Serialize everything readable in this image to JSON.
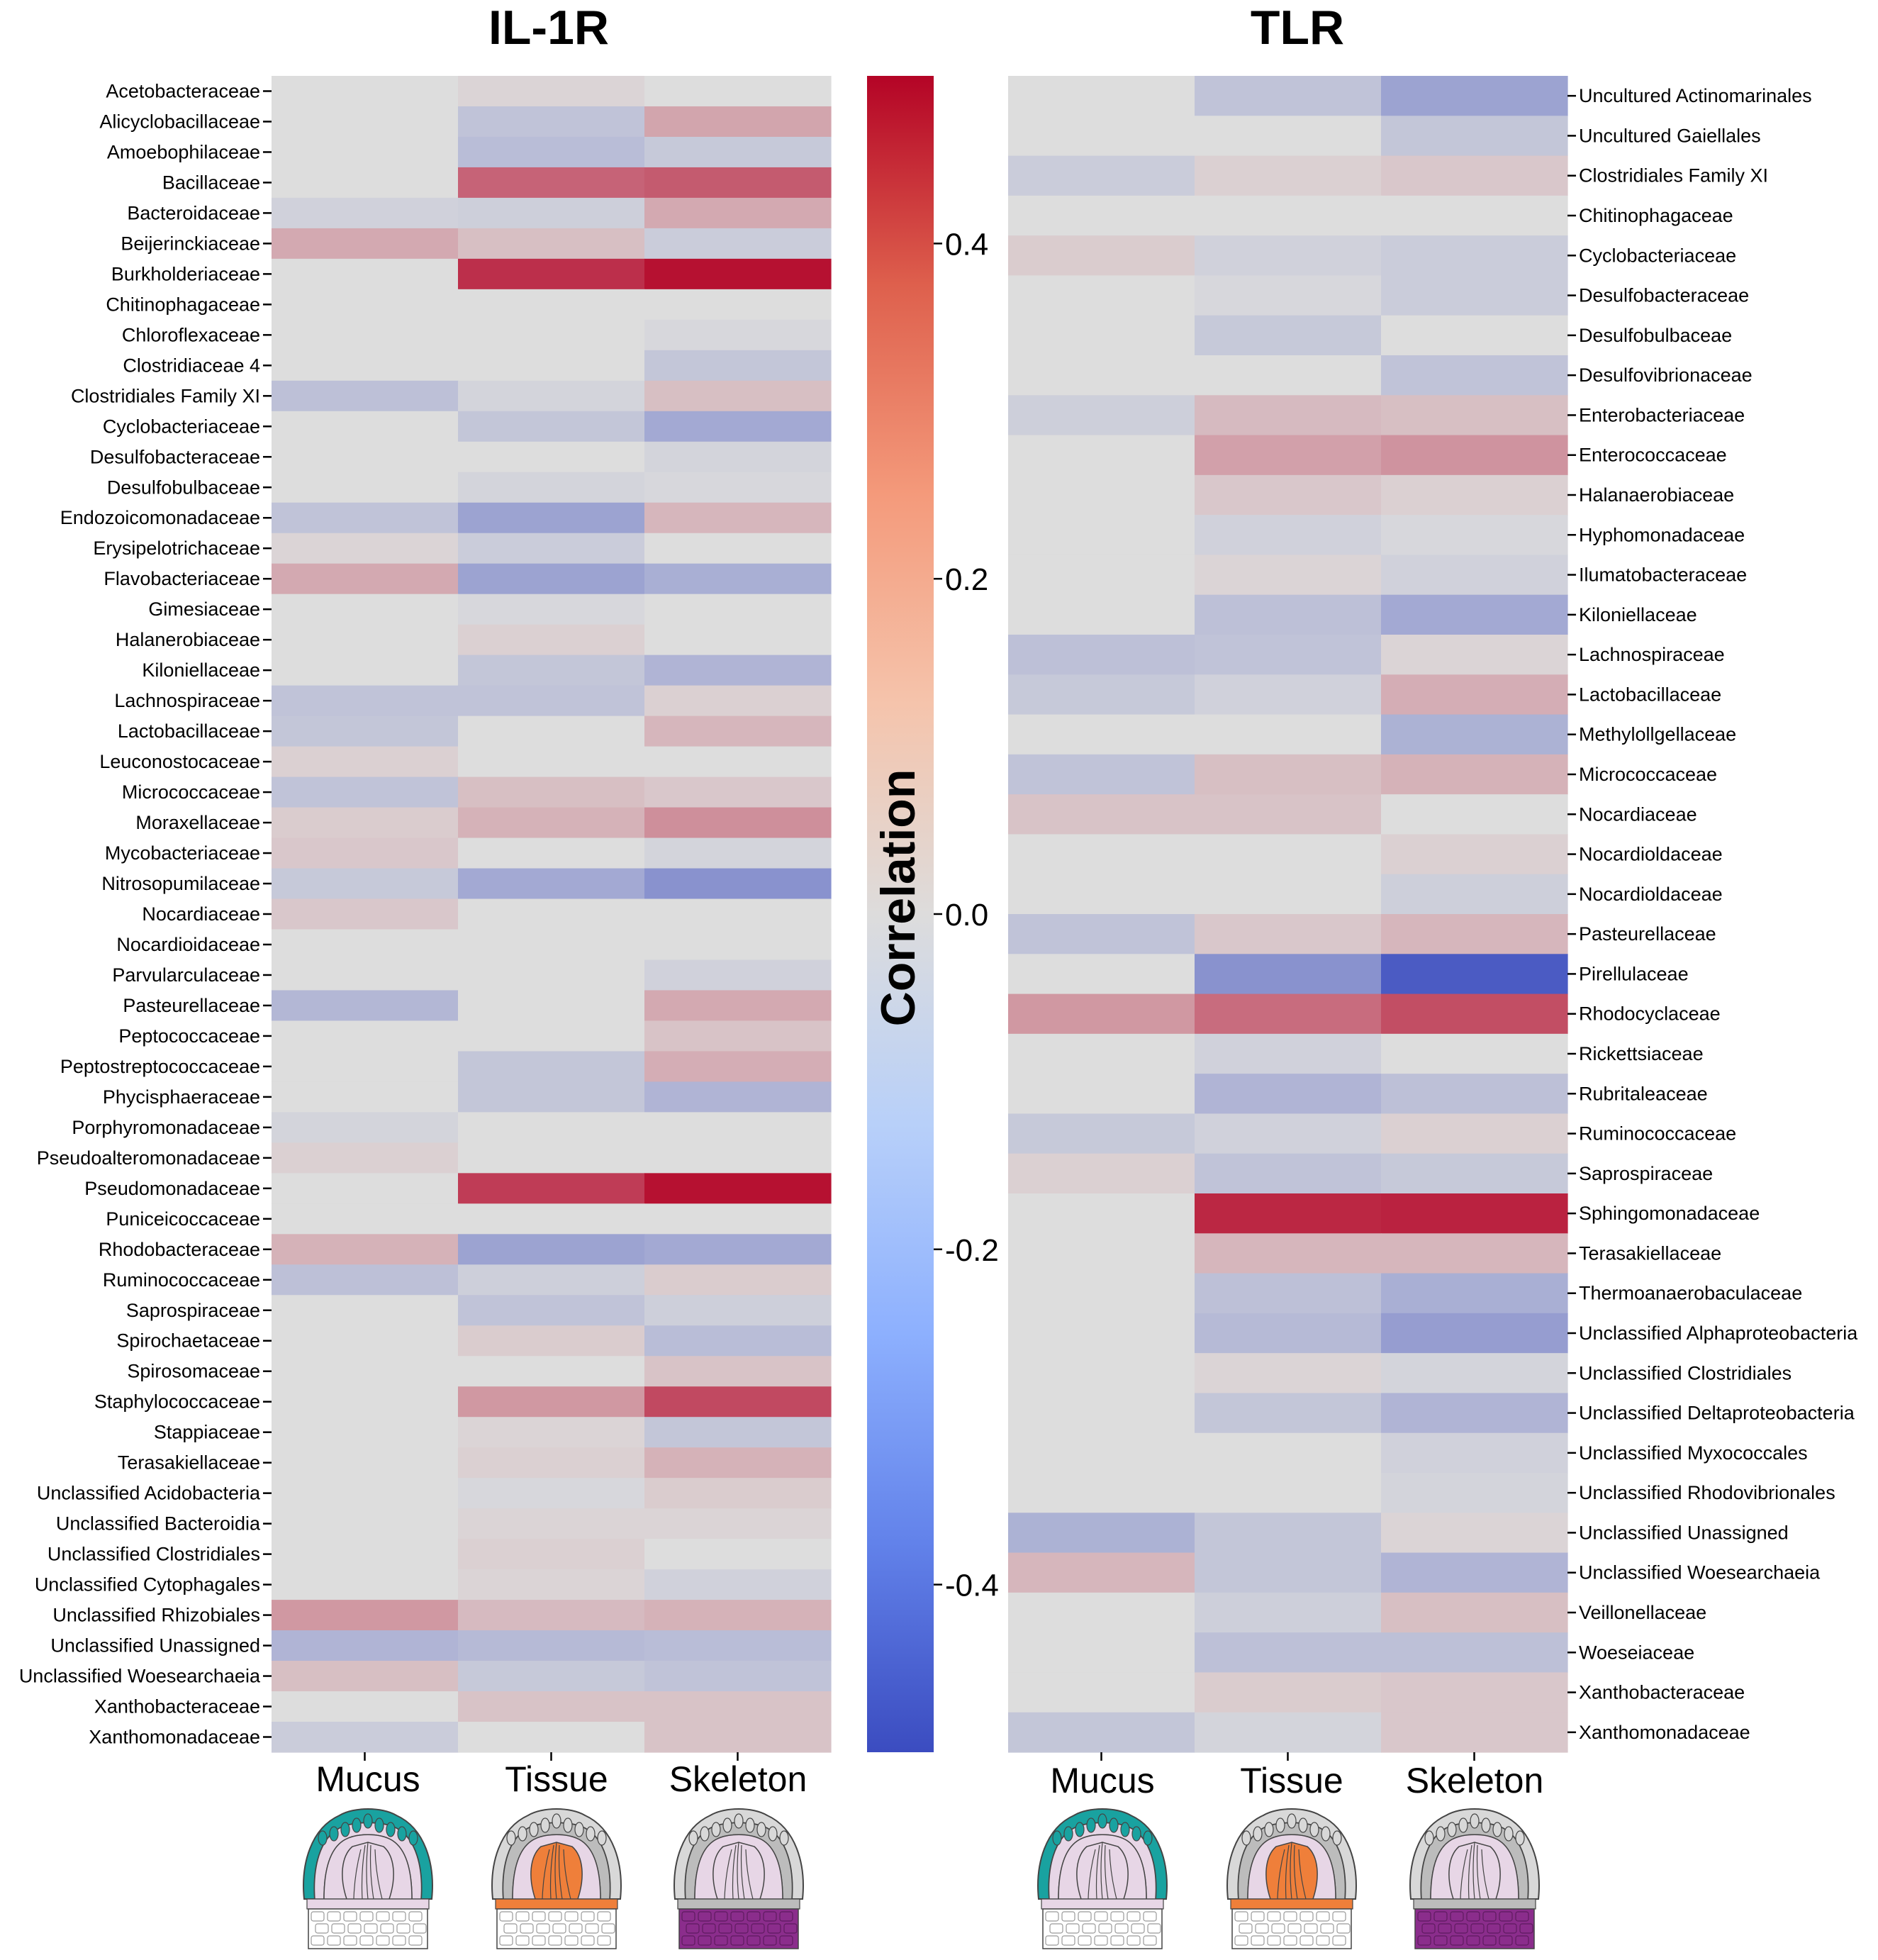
{
  "chart_data": [
    {
      "type": "heatmap",
      "title": "IL-1R",
      "columns": [
        "Mucus",
        "Tissue",
        "Skeleton"
      ],
      "rows": [
        "Acetobacteraceae",
        "Alicyclobacillaceae",
        "Amoebophilaceae",
        "Bacillaceae",
        "Bacteroidaceae",
        "Beijerinckiaceae",
        "Burkholderiaceae",
        "Chitinophagaceae",
        "Chloroflexaceae",
        "Clostridiaceae 4",
        "Clostridiales Family XI",
        "Cyclobacteriaceae",
        "Desulfobacteraceae",
        "Desulfobulbaceae",
        "Endozoicomonadaceae",
        "Erysipelotrichaceae",
        "Flavobacteriaceae",
        "Gimesiaceae",
        "Halanerobiaceae",
        "Kiloniellaceae",
        "Lachnospiraceae",
        "Lactobacillaceae",
        "Leuconostocaceae",
        "Micrococcaceae",
        "Moraxellaceae",
        "Mycobacteriaceae",
        "Nitrosopumilaceae",
        "Nocardiaceae",
        "Nocardioidaceae",
        "Parvularculaceae",
        "Pasteurellaceae",
        "Peptococcaceae",
        "Peptostreptococcaceae",
        "Phycisphaeraceae",
        "Porphyromonadaceae",
        "Pseudoalteromonadaceae",
        "Pseudomonadaceae",
        "Puniceicoccaceae",
        "Rhodobacteraceae",
        "Ruminococcaceae",
        "Saprospiraceae",
        "Spirochaetaceae",
        "Spirosomaceae",
        "Staphylococcaceae",
        "Stappiaceae",
        "Terasakiellaceae",
        "Unclassified Acidobacteria",
        "Unclassified Bacteroidia",
        "Unclassified Clostridiales",
        "Unclassified Cytophagales",
        "Unclassified Rhizobiales",
        "Unclassified Unassigned",
        "Unclassified Woesearchaeia",
        "Xanthobacteraceae",
        "Xanthomonadaceae"
      ],
      "values": [
        [
          0,
          0.02,
          0
        ],
        [
          0,
          -0.09,
          0.13
        ],
        [
          0,
          -0.11,
          -0.07
        ],
        [
          0,
          0.28,
          0.3
        ],
        [
          -0.04,
          -0.05,
          0.12
        ],
        [
          0.12,
          0.07,
          -0.06
        ],
        [
          0,
          0.4,
          0.47
        ],
        [
          0,
          0,
          0
        ],
        [
          0,
          0,
          -0.02
        ],
        [
          0,
          0,
          -0.08
        ],
        [
          -0.1,
          -0.03,
          0.07
        ],
        [
          0,
          -0.08,
          -0.18
        ],
        [
          0,
          0,
          -0.03
        ],
        [
          0,
          -0.03,
          -0.02
        ],
        [
          -0.09,
          -0.2,
          0.09
        ],
        [
          0.02,
          -0.06,
          0
        ],
        [
          0.12,
          -0.2,
          -0.16
        ],
        [
          0,
          -0.02,
          0
        ],
        [
          0,
          0.03,
          0
        ],
        [
          0,
          -0.08,
          -0.14
        ],
        [
          -0.09,
          -0.09,
          0.03
        ],
        [
          -0.08,
          0,
          0.09
        ],
        [
          0.03,
          0,
          0
        ],
        [
          -0.09,
          0.07,
          0.05
        ],
        [
          0.04,
          0.1,
          0.18
        ],
        [
          0.05,
          0,
          -0.03
        ],
        [
          -0.07,
          -0.18,
          -0.26
        ],
        [
          0.05,
          0,
          0
        ],
        [
          0,
          0,
          0
        ],
        [
          0,
          0,
          -0.04
        ],
        [
          -0.13,
          0,
          0.12
        ],
        [
          0,
          0,
          0.06
        ],
        [
          0,
          -0.08,
          0.11
        ],
        [
          0,
          -0.08,
          -0.14
        ],
        [
          -0.03,
          0,
          0
        ],
        [
          0.03,
          0,
          0
        ],
        [
          0,
          0.37,
          0.47
        ],
        [
          0,
          0,
          0
        ],
        [
          0.1,
          -0.2,
          -0.18
        ],
        [
          -0.1,
          -0.05,
          0.04
        ],
        [
          0,
          -0.09,
          -0.05
        ],
        [
          0,
          0.04,
          -0.11
        ],
        [
          0,
          0,
          0.06
        ],
        [
          0,
          0.16,
          0.34
        ],
        [
          0,
          0.02,
          -0.08
        ],
        [
          0,
          0.03,
          0.1
        ],
        [
          0,
          -0.02,
          0.04
        ],
        [
          0,
          0.02,
          0.02
        ],
        [
          0,
          0.03,
          0
        ],
        [
          0,
          0.02,
          -0.04
        ],
        [
          0.16,
          0.08,
          0.1
        ],
        [
          -0.14,
          -0.12,
          -0.11
        ],
        [
          0.07,
          -0.07,
          -0.09
        ],
        [
          0,
          0.06,
          0.06
        ],
        [
          -0.06,
          0,
          0.06
        ]
      ]
    },
    {
      "type": "heatmap",
      "title": "TLR",
      "columns": [
        "Mucus",
        "Tissue",
        "Skeleton"
      ],
      "rows": [
        "Uncultured Actinomarinales",
        "Uncultured Gaiellales",
        "Clostridiales Family XI",
        "Chitinophagaceae",
        "Cyclobacteriaceae",
        "Desulfobacteraceae",
        "Desulfobulbaceae",
        "Desulfovibrionaceae",
        "Enterobacteriaceae",
        "Enterococcaceae",
        "Halanaerobiaceae",
        "Hyphomonadaceae",
        "Ilumatobacteraceae",
        "Kiloniellaceae",
        "Lachnospiraceae",
        "Lactobacillaceae",
        "Methylollgellaceae",
        "Micrococcaceae",
        "Nocardiaceae",
        "Nocardioldaceae",
        "Nocardioldaceae",
        "Pasteurellaceae",
        "Pirellulaceae",
        "Rhodocyclaceae",
        "Rickettsiaceae",
        "Rubritaleaceae",
        "Ruminococcaceae",
        "Saprospiraceae",
        "Sphingomonadaceae",
        "Terasakiellaceae",
        "Thermoanaerobaculaceae",
        "Unclassified Alphaproteobacteria",
        "Unclassified Clostridiales",
        "Unclassified Deltaproteobacteria",
        "Unclassified Myxococcales",
        "Unclassified Rhodovibrionales",
        "Unclassified Unassigned",
        "Unclassified Woesearchaeia",
        "Veillonellaceae",
        "Woeseiaceae",
        "Xanthobacteraceae",
        "Xanthomonadaceae"
      ],
      "values": [
        [
          0,
          -0.09,
          -0.2
        ],
        [
          0,
          0,
          -0.08
        ],
        [
          -0.06,
          0.03,
          0.05
        ],
        [
          0,
          0,
          0
        ],
        [
          0.04,
          -0.04,
          -0.06
        ],
        [
          0,
          -0.02,
          -0.06
        ],
        [
          0,
          -0.07,
          0
        ],
        [
          0,
          0,
          -0.09
        ],
        [
          -0.05,
          0.08,
          0.07
        ],
        [
          0,
          0.14,
          0.17
        ],
        [
          0,
          0.05,
          0.03
        ],
        [
          0,
          -0.04,
          -0.02
        ],
        [
          0,
          0.02,
          -0.04
        ],
        [
          0,
          -0.1,
          -0.18
        ],
        [
          -0.1,
          -0.09,
          0.02
        ],
        [
          -0.07,
          -0.04,
          0.11
        ],
        [
          0,
          0,
          -0.15
        ],
        [
          -0.09,
          0.07,
          0.1
        ],
        [
          0.06,
          0.06,
          0
        ],
        [
          0,
          0,
          0.03
        ],
        [
          0,
          0,
          -0.05
        ],
        [
          -0.09,
          0.05,
          0.09
        ],
        [
          0,
          -0.26,
          -0.45
        ],
        [
          0.16,
          0.26,
          0.33
        ],
        [
          0,
          -0.04,
          0
        ],
        [
          0,
          -0.14,
          -0.1
        ],
        [
          -0.07,
          -0.04,
          0.03
        ],
        [
          0.03,
          -0.09,
          -0.07
        ],
        [
          0,
          0.42,
          0.43
        ],
        [
          0,
          0.09,
          0.09
        ],
        [
          0,
          -0.1,
          -0.16
        ],
        [
          0,
          -0.12,
          -0.22
        ],
        [
          0,
          0.02,
          -0.03
        ],
        [
          0,
          -0.08,
          -0.14
        ],
        [
          0,
          0,
          -0.04
        ],
        [
          0,
          0,
          -0.03
        ],
        [
          -0.15,
          -0.08,
          0.02
        ],
        [
          0.09,
          -0.08,
          -0.14
        ],
        [
          0,
          -0.05,
          0.07
        ],
        [
          0,
          -0.1,
          -0.1
        ],
        [
          0,
          0.04,
          0.05
        ],
        [
          -0.08,
          -0.03,
          0.05
        ]
      ]
    }
  ],
  "colorbar": {
    "label": "Correlation",
    "ticks": [
      "0.4",
      "0.2",
      "0.0",
      "-0.2",
      "-0.4"
    ],
    "tick_values": [
      0.4,
      0.2,
      0.0,
      -0.2,
      -0.4
    ],
    "range": [
      -0.5,
      0.5
    ],
    "colormap": "coolwarm",
    "low_color": "#3b4cc0",
    "mid_color": "#dddddd",
    "high_color": "#b40426"
  },
  "illustrations": {
    "tissue_colors": {
      "mucus": "#19a2a0",
      "tissue": "#ef7f3a",
      "skeleton": "#8b2d8c",
      "polyp_body": "#e7d6e6",
      "outline": "#444444",
      "grey_layer": "#bcbcbc"
    },
    "highlight": [
      "mucus",
      "tissue",
      "skeleton"
    ]
  }
}
